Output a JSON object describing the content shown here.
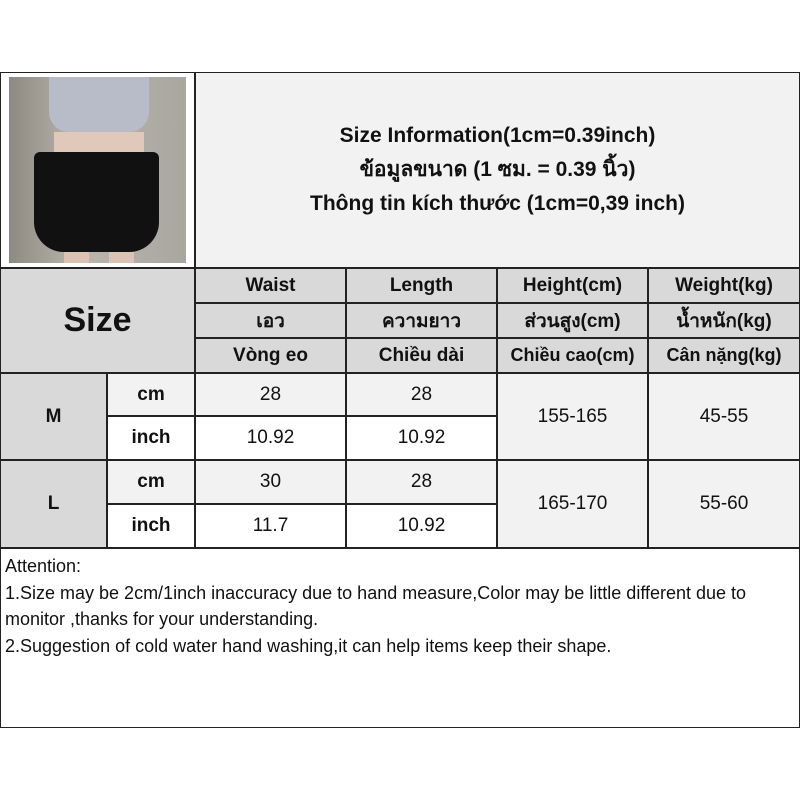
{
  "title": {
    "line1": "Size Information(1cm=0.39inch)",
    "line2": "ข้อมูลขนาด (1 ซม. = 0.39 นิ้ว)",
    "line3": "Thông tin kích thước (1cm=0,39 inch)"
  },
  "colors": {
    "header_bg": "#d9d9d9",
    "light_bg": "#f2f2f2",
    "border": "#222222"
  },
  "table": {
    "size_label": "Size",
    "columns": [
      {
        "en": "Waist",
        "th": "เอว",
        "vi": "Vòng eo"
      },
      {
        "en": "Length",
        "th": "ความยาว",
        "vi": "Chiều dài"
      },
      {
        "en": "Height(cm)",
        "th": "ส่วนสูง(cm)",
        "vi": "Chiều cao(cm)"
      },
      {
        "en": "Weight(kg)",
        "th": "น้ำหนัก(kg)",
        "vi": "Cân nặng(kg)"
      }
    ],
    "rows": [
      {
        "size": "M",
        "cm_label": "cm",
        "inch_label": "inch",
        "waist_cm": "28",
        "length_cm": "28",
        "waist_inch": "10.92",
        "length_inch": "10.92",
        "height": "155-165",
        "weight": "45-55"
      },
      {
        "size": "L",
        "cm_label": "cm",
        "inch_label": "inch",
        "waist_cm": "30",
        "length_cm": "28",
        "waist_inch": "11.7",
        "length_inch": "10.92",
        "height": "165-170",
        "weight": "55-60"
      }
    ]
  },
  "attention": {
    "heading": "Attention:",
    "note1": "1.Size may be 2cm/1inch inaccuracy due to hand measure,Color may be little different due to monitor ,thanks for your understanding.",
    "note2": "2.Suggestion of cold water hand washing,it can help items keep their shape."
  }
}
